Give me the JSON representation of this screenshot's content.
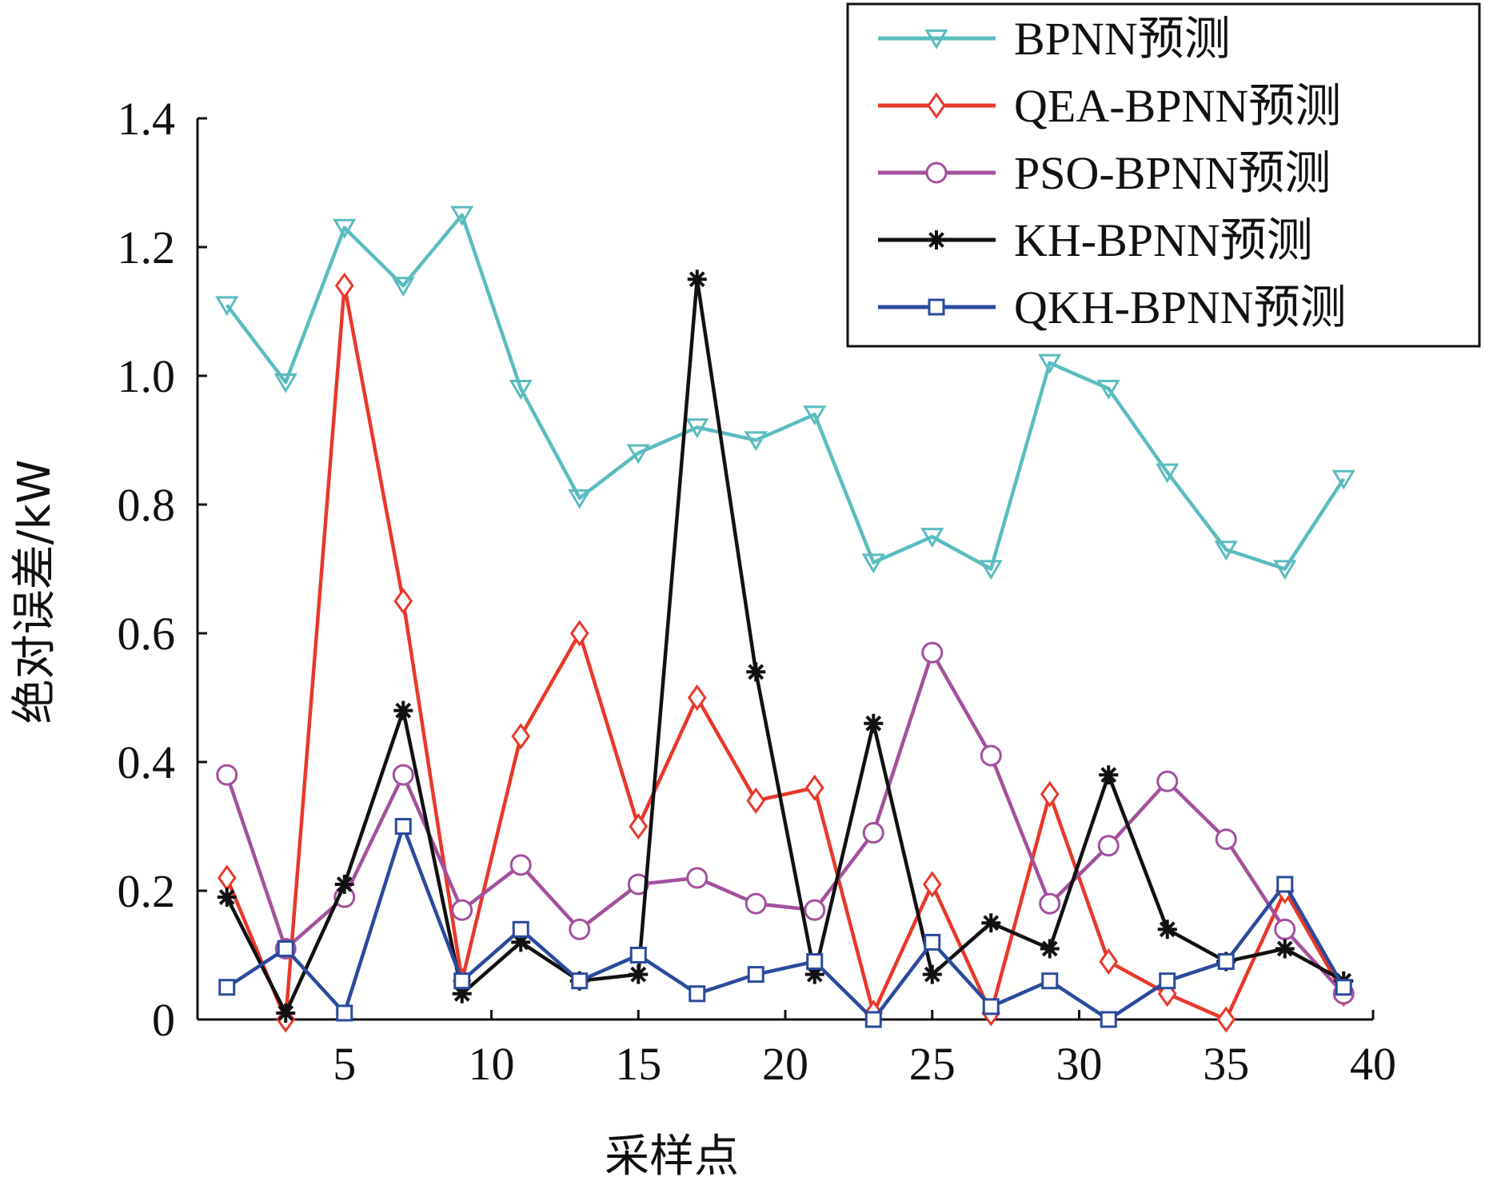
{
  "chart_data": {
    "type": "line",
    "xlabel": "采样点",
    "ylabel": "绝对误差/kW",
    "xlim": [
      0,
      40
    ],
    "ylim": [
      0,
      1.4
    ],
    "x_ticks": [
      5,
      10,
      15,
      20,
      25,
      30,
      35,
      40
    ],
    "y_ticks": [
      0,
      0.2,
      0.4,
      0.6,
      0.8,
      1.0,
      1.2,
      1.4
    ],
    "y_tick_labels": [
      "0",
      "0.2",
      "0.4",
      "0.6",
      "0.8",
      "1.0",
      "1.2",
      "1.4"
    ],
    "grid": false,
    "legend_position": "top-right",
    "x": [
      1,
      3,
      5,
      7,
      9,
      11,
      13,
      15,
      17,
      19,
      21,
      23,
      25,
      27,
      29,
      31,
      33,
      35,
      37,
      39
    ],
    "series": [
      {
        "name": "BPNN预测",
        "color": "#5bbcbf",
        "marker": "triangle-down",
        "values": [
          1.11,
          0.99,
          1.23,
          1.14,
          1.25,
          0.98,
          0.81,
          0.88,
          0.92,
          0.9,
          0.94,
          0.71,
          0.75,
          0.7,
          1.02,
          0.98,
          0.85,
          0.73,
          0.7,
          0.84
        ]
      },
      {
        "name": "QEA-BPNN预测",
        "color": "#e8382b",
        "marker": "diamond",
        "values": [
          0.22,
          0.0,
          1.14,
          0.65,
          0.06,
          0.44,
          0.6,
          0.3,
          0.5,
          0.34,
          0.36,
          0.01,
          0.21,
          0.01,
          0.35,
          0.09,
          0.04,
          0.0,
          0.2,
          0.04
        ]
      },
      {
        "name": "PSO-BPNN预测",
        "color": "#a3509e",
        "marker": "circle",
        "values": [
          0.38,
          0.11,
          0.19,
          0.38,
          0.17,
          0.24,
          0.14,
          0.21,
          0.22,
          0.18,
          0.17,
          0.29,
          0.57,
          0.41,
          0.18,
          0.27,
          0.37,
          0.28,
          0.14,
          0.04
        ]
      },
      {
        "name": "KH-BPNN预测",
        "color": "#111111",
        "marker": "star",
        "values": [
          0.19,
          0.01,
          0.21,
          0.48,
          0.04,
          0.12,
          0.06,
          0.07,
          1.15,
          0.54,
          0.07,
          0.46,
          0.07,
          0.15,
          0.11,
          0.38,
          0.14,
          0.09,
          0.11,
          0.06
        ]
      },
      {
        "name": "QKH-BPNN预测",
        "color": "#2a4a9c",
        "marker": "square",
        "values": [
          0.05,
          0.11,
          0.01,
          0.3,
          0.06,
          0.14,
          0.06,
          0.1,
          0.04,
          0.07,
          0.09,
          0.0,
          0.12,
          0.02,
          0.06,
          0.0,
          0.06,
          0.09,
          0.21,
          0.05
        ]
      }
    ]
  }
}
